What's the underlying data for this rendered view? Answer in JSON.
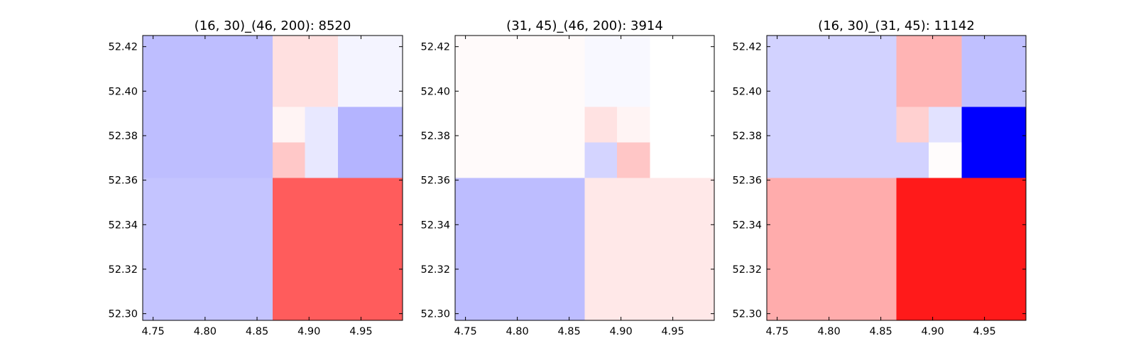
{
  "chart_data": [
    {
      "type": "heatmap",
      "title": "(16, 30)_(46, 200): 8520",
      "xlim": [
        4.74,
        4.99
      ],
      "ylim": [
        52.297,
        52.425
      ],
      "xticks": [
        "4.75",
        "4.80",
        "4.85",
        "4.90",
        "4.95"
      ],
      "yticks": [
        "52.30",
        "52.32",
        "52.34",
        "52.36",
        "52.38",
        "52.40",
        "52.42"
      ],
      "cells": [
        {
          "x0": 4.74,
          "x1": 4.865,
          "y0": 52.361,
          "y1": 52.425,
          "color": "#bebeff"
        },
        {
          "x0": 4.74,
          "x1": 4.865,
          "y0": 52.297,
          "y1": 52.361,
          "color": "#c4c4ff"
        },
        {
          "x0": 4.865,
          "x1": 4.928,
          "y0": 52.393,
          "y1": 52.425,
          "color": "#ffe0e0"
        },
        {
          "x0": 4.928,
          "x1": 4.99,
          "y0": 52.393,
          "y1": 52.425,
          "color": "#f4f4ff"
        },
        {
          "x0": 4.865,
          "x1": 4.896,
          "y0": 52.377,
          "y1": 52.393,
          "color": "#fff4f4"
        },
        {
          "x0": 4.865,
          "x1": 4.896,
          "y0": 52.361,
          "y1": 52.377,
          "color": "#ffc8c8"
        },
        {
          "x0": 4.896,
          "x1": 4.928,
          "y0": 52.361,
          "y1": 52.393,
          "color": "#e8e8ff"
        },
        {
          "x0": 4.928,
          "x1": 4.99,
          "y0": 52.361,
          "y1": 52.393,
          "color": "#b4b4ff"
        },
        {
          "x0": 4.865,
          "x1": 4.99,
          "y0": 52.297,
          "y1": 52.361,
          "color": "#ff5c5c"
        }
      ]
    },
    {
      "type": "heatmap",
      "title": "(31, 45)_(46, 200): 3914",
      "xlim": [
        4.74,
        4.99
      ],
      "ylim": [
        52.297,
        52.425
      ],
      "xticks": [
        "4.75",
        "4.80",
        "4.85",
        "4.90",
        "4.95"
      ],
      "yticks": [
        "52.30",
        "52.32",
        "52.34",
        "52.36",
        "52.38",
        "52.40",
        "52.42"
      ],
      "cells": [
        {
          "x0": 4.74,
          "x1": 4.865,
          "y0": 52.361,
          "y1": 52.425,
          "color": "#fffafa"
        },
        {
          "x0": 4.74,
          "x1": 4.865,
          "y0": 52.297,
          "y1": 52.361,
          "color": "#bdbdff"
        },
        {
          "x0": 4.865,
          "x1": 4.928,
          "y0": 52.393,
          "y1": 52.425,
          "color": "#f8f8ff"
        },
        {
          "x0": 4.928,
          "x1": 4.99,
          "y0": 52.393,
          "y1": 52.425,
          "color": "#ffffff"
        },
        {
          "x0": 4.865,
          "x1": 4.896,
          "y0": 52.377,
          "y1": 52.393,
          "color": "#ffe2e2"
        },
        {
          "x0": 4.896,
          "x1": 4.928,
          "y0": 52.377,
          "y1": 52.393,
          "color": "#fff4f4"
        },
        {
          "x0": 4.865,
          "x1": 4.896,
          "y0": 52.361,
          "y1": 52.377,
          "color": "#d4d4ff"
        },
        {
          "x0": 4.896,
          "x1": 4.928,
          "y0": 52.361,
          "y1": 52.377,
          "color": "#ffc6c6"
        },
        {
          "x0": 4.928,
          "x1": 4.99,
          "y0": 52.361,
          "y1": 52.393,
          "color": "#ffffff"
        },
        {
          "x0": 4.865,
          "x1": 4.99,
          "y0": 52.297,
          "y1": 52.361,
          "color": "#ffe8e8"
        }
      ]
    },
    {
      "type": "heatmap",
      "title": "(16, 30)_(31, 45): 11142",
      "xlim": [
        4.74,
        4.99
      ],
      "ylim": [
        52.297,
        52.425
      ],
      "xticks": [
        "4.75",
        "4.80",
        "4.85",
        "4.90",
        "4.95"
      ],
      "yticks": [
        "52.30",
        "52.32",
        "52.34",
        "52.36",
        "52.38",
        "52.40",
        "52.42"
      ],
      "cells": [
        {
          "x0": 4.74,
          "x1": 4.865,
          "y0": 52.361,
          "y1": 52.425,
          "color": "#d2d2ff"
        },
        {
          "x0": 4.74,
          "x1": 4.865,
          "y0": 52.297,
          "y1": 52.361,
          "color": "#ffacac"
        },
        {
          "x0": 4.865,
          "x1": 4.928,
          "y0": 52.393,
          "y1": 52.425,
          "color": "#ffb4b4"
        },
        {
          "x0": 4.928,
          "x1": 4.99,
          "y0": 52.393,
          "y1": 52.425,
          "color": "#c0c0ff"
        },
        {
          "x0": 4.865,
          "x1": 4.896,
          "y0": 52.377,
          "y1": 52.393,
          "color": "#ffd0d0"
        },
        {
          "x0": 4.896,
          "x1": 4.928,
          "y0": 52.377,
          "y1": 52.393,
          "color": "#e2e2ff"
        },
        {
          "x0": 4.865,
          "x1": 4.896,
          "y0": 52.361,
          "y1": 52.377,
          "color": "#d2d2ff"
        },
        {
          "x0": 4.896,
          "x1": 4.928,
          "y0": 52.361,
          "y1": 52.377,
          "color": "#fffcfc"
        },
        {
          "x0": 4.928,
          "x1": 4.99,
          "y0": 52.361,
          "y1": 52.393,
          "color": "#0000ff"
        },
        {
          "x0": 4.865,
          "x1": 4.99,
          "y0": 52.297,
          "y1": 52.361,
          "color": "#ff1a1a"
        }
      ]
    }
  ]
}
